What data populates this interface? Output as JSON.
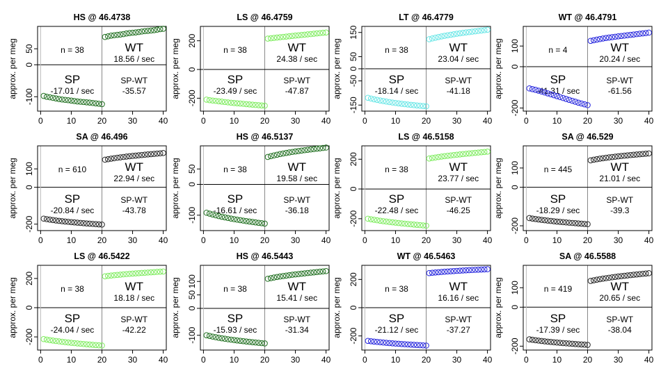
{
  "figure": {
    "ylabel": "approx. per meg",
    "region_labels": {
      "top_right": "WT",
      "bottom_left": "SP",
      "bottom_right": "SP-WT"
    }
  },
  "chart_data": [
    {
      "type": "scatter",
      "title": "HS @ 46.4738",
      "n_label": "n = 38",
      "wt_rate": "18.56 / sec",
      "sp_rate": "-17.01 / sec",
      "diff": "-35.57",
      "color": "#1e6e1e",
      "ylim": [
        -145,
        120
      ],
      "yticks": [
        -100,
        0,
        50
      ],
      "xlim": [
        -1,
        41
      ],
      "xticks": [
        0,
        10,
        20,
        30,
        40
      ],
      "x": [
        1,
        2,
        3,
        4,
        5,
        6,
        7,
        8,
        9,
        10,
        11,
        12,
        13,
        14,
        15,
        16,
        17,
        18,
        19,
        20,
        21,
        22,
        23,
        24,
        25,
        26,
        27,
        28,
        29,
        30,
        31,
        32,
        33,
        34,
        35,
        36,
        37,
        38,
        39,
        40
      ],
      "sp_y": [
        -97.3,
        -100,
        -101.6,
        -103.5,
        -105.3,
        -107.2,
        -108.6,
        -109.7,
        -110.8,
        -112,
        -113.4,
        -114.7,
        -115.7,
        -116.5,
        -117.4,
        -118.3,
        -119.5,
        -120.7,
        -121.9,
        -123.2
      ],
      "wt_y": [
        87,
        89,
        91,
        92.3,
        93.5,
        94.6,
        96,
        97.8,
        99.2,
        100.2,
        101.2,
        102.5,
        104,
        105.3,
        106.1,
        107,
        108.2,
        109.8,
        111.4,
        112.6
      ]
    },
    {
      "type": "scatter",
      "title": "LS @ 46.4759",
      "n_label": "n = 38",
      "wt_rate": "24.38 / sec",
      "sp_rate": "-23.49 / sec",
      "diff": "-47.87",
      "color": "#7cec5c",
      "ylim": [
        -290,
        300
      ],
      "yticks": [
        -200,
        0,
        200
      ],
      "xlim": [
        -1,
        41
      ],
      "xticks": [
        0,
        10,
        20,
        30,
        40
      ],
      "x": [
        1,
        2,
        3,
        4,
        5,
        6,
        7,
        8,
        9,
        10,
        11,
        12,
        13,
        14,
        15,
        16,
        17,
        18,
        19,
        20,
        21,
        22,
        23,
        24,
        25,
        26,
        27,
        28,
        29,
        30,
        31,
        32,
        33,
        34,
        35,
        36,
        37,
        38,
        39,
        40
      ],
      "sp_y": [
        -210,
        -213.5,
        -216.3,
        -218.7,
        -221.2,
        -223.8,
        -226.5,
        -229,
        -231.4,
        -233.5,
        -235.4,
        -237.2,
        -239.2,
        -241.2,
        -243.2,
        -245.1,
        -247,
        -248.7,
        -250.4,
        -252
      ],
      "wt_y": [
        215,
        217.6,
        220,
        222.3,
        224.6,
        226.8,
        229,
        231.3,
        233.7,
        236,
        238.2,
        240.4,
        242.5,
        244.6,
        246.7,
        249,
        251.3,
        253.5,
        255.5,
        257.3
      ]
    },
    {
      "type": "scatter",
      "title": "LT @ 46.4779",
      "n_label": "n = 38",
      "wt_rate": "23.04 / sec",
      "sp_rate": "-18.14 / sec",
      "diff": "-41.18",
      "color": "#66e6e6",
      "ylim": [
        -175,
        175
      ],
      "yticks": [
        -150,
        -50,
        0,
        50,
        150
      ],
      "xlim": [
        -1,
        41
      ],
      "xticks": [
        0,
        10,
        20,
        30,
        40
      ],
      "x": [
        1,
        2,
        3,
        4,
        5,
        6,
        7,
        8,
        9,
        10,
        11,
        12,
        13,
        14,
        15,
        16,
        17,
        18,
        19,
        20,
        21,
        22,
        23,
        24,
        25,
        26,
        27,
        28,
        29,
        30,
        31,
        32,
        33,
        34,
        35,
        36,
        37,
        38,
        39,
        40
      ],
      "sp_y": [
        -120,
        -123,
        -126,
        -128.5,
        -131,
        -133.3,
        -135.5,
        -137.6,
        -139.5,
        -141.3,
        -143,
        -144.6,
        -146.1,
        -147.5,
        -148.9,
        -150.2,
        -151.5,
        -152.8,
        -154,
        -155.2
      ],
      "wt_y": [
        122,
        125.2,
        128.2,
        131,
        133.6,
        136,
        138.3,
        140.5,
        142.6,
        144.6,
        146.5,
        148.3,
        150,
        151.6,
        153.2,
        154.8,
        156.4,
        158,
        159.6,
        161.2
      ]
    },
    {
      "type": "scatter",
      "title": "WT @ 46.4791",
      "n_label": "n = 4",
      "wt_rate": "20.24 / sec",
      "sp_rate": "-41.31 / sec",
      "diff": "-61.56",
      "color": "#2222dd",
      "ylim": [
        -215,
        195
      ],
      "yticks": [
        -200,
        0,
        100
      ],
      "xlim": [
        -1,
        41
      ],
      "xticks": [
        0,
        10,
        20,
        30,
        40
      ],
      "x": [
        1,
        2,
        3,
        4,
        5,
        6,
        7,
        8,
        9,
        10,
        11,
        12,
        13,
        14,
        15,
        16,
        17,
        18,
        19,
        20,
        21,
        22,
        23,
        24,
        25,
        26,
        27,
        28,
        29,
        30,
        31,
        32,
        33,
        34,
        35,
        36,
        37,
        38,
        39,
        40
      ],
      "sp_y": [
        -105,
        -108.5,
        -112,
        -116,
        -120,
        -124.5,
        -129,
        -133.5,
        -138,
        -142.5,
        -147,
        -151.5,
        -156,
        -160.5,
        -165,
        -169.5,
        -174,
        -178,
        -182,
        -186
      ],
      "wt_y": [
        125,
        128,
        131,
        133.8,
        136.4,
        138.8,
        141,
        143.1,
        145,
        146.8,
        148.6,
        150.4,
        152.2,
        154,
        155.8,
        157.6,
        159.4,
        161.2,
        163,
        164.8
      ]
    },
    {
      "type": "scatter",
      "title": "SA @ 46.496",
      "n_label": "n = 610",
      "wt_rate": "22.94 / sec",
      "sp_rate": "-20.84 / sec",
      "diff": "-43.78",
      "color": "#222222",
      "ylim": [
        -235,
        225
      ],
      "yticks": [
        -200,
        0,
        100
      ],
      "xlim": [
        -1,
        41
      ],
      "xticks": [
        0,
        10,
        20,
        30,
        40
      ],
      "x": [
        1,
        2,
        3,
        4,
        5,
        6,
        7,
        8,
        9,
        10,
        11,
        12,
        13,
        14,
        15,
        16,
        17,
        18,
        19,
        20,
        21,
        22,
        23,
        24,
        25,
        26,
        27,
        28,
        29,
        30,
        31,
        32,
        33,
        34,
        35,
        36,
        37,
        38,
        39,
        40
      ],
      "sp_y": [
        -170,
        -172.8,
        -175.4,
        -177.8,
        -180,
        -182,
        -183.9,
        -185.7,
        -187.4,
        -189,
        -190.5,
        -192,
        -193.4,
        -194.8,
        -196.1,
        -197.4,
        -198.7,
        -200,
        -201.2,
        -202.4
      ],
      "wt_y": [
        150,
        152.8,
        155.5,
        158,
        160.4,
        162.6,
        164.7,
        166.7,
        168.6,
        170.4,
        172.1,
        173.8,
        175.4,
        177,
        178.5,
        180,
        181.5,
        183,
        184.5,
        186
      ]
    },
    {
      "type": "scatter",
      "title": "HS @ 46.5137",
      "n_label": "n = 38",
      "wt_rate": "19.58 / sec",
      "sp_rate": "-16.61 / sec",
      "diff": "-36.18",
      "color": "#1e6e1e",
      "ylim": [
        -150,
        125
      ],
      "yticks": [
        -100,
        0,
        50
      ],
      "xlim": [
        -1,
        41
      ],
      "xticks": [
        0,
        10,
        20,
        30,
        40
      ],
      "x": [
        1,
        2,
        3,
        4,
        5,
        6,
        7,
        8,
        9,
        10,
        11,
        12,
        13,
        14,
        15,
        16,
        17,
        18,
        19,
        20,
        21,
        22,
        23,
        24,
        25,
        26,
        27,
        28,
        29,
        30,
        31,
        32,
        33,
        34,
        35,
        36,
        37,
        38,
        39,
        40
      ],
      "sp_y": [
        -92,
        -95,
        -97.8,
        -100.4,
        -102.8,
        -105,
        -107.1,
        -109.1,
        -111,
        -112.8,
        -114.5,
        -116.1,
        -117.6,
        -119.1,
        -120.5,
        -121.9,
        -123.3,
        -124.7,
        -126,
        -127.3
      ],
      "wt_y": [
        89,
        91.6,
        94,
        96.2,
        98.3,
        100.2,
        102,
        103.7,
        105.3,
        106.8,
        108.2,
        109.6,
        110.9,
        112.2,
        113.4,
        114.6,
        115.8,
        117,
        118.2,
        119.4
      ]
    },
    {
      "type": "scatter",
      "title": "LS @ 46.5158",
      "n_label": "n = 38",
      "wt_rate": "23.77 / sec",
      "sp_rate": "-22.48 / sec",
      "diff": "-46.25",
      "color": "#7cec5c",
      "ylim": [
        -280,
        290
      ],
      "yticks": [
        -200,
        0,
        200
      ],
      "xlim": [
        -1,
        41
      ],
      "xticks": [
        0,
        10,
        20,
        30,
        40
      ],
      "x": [
        1,
        2,
        3,
        4,
        5,
        6,
        7,
        8,
        9,
        10,
        11,
        12,
        13,
        14,
        15,
        16,
        17,
        18,
        19,
        20,
        21,
        22,
        23,
        24,
        25,
        26,
        27,
        28,
        29,
        30,
        31,
        32,
        33,
        34,
        35,
        36,
        37,
        38,
        39,
        40
      ],
      "sp_y": [
        -200,
        -203.7,
        -207.2,
        -210.5,
        -213.6,
        -216.5,
        -219.2,
        -221.8,
        -224.3,
        -226.7,
        -229,
        -231.2,
        -233.3,
        -235.4,
        -237.4,
        -239.4,
        -241.3,
        -243.2,
        -245,
        -246.8
      ],
      "wt_y": [
        205,
        208.5,
        211.8,
        214.9,
        217.8,
        220.6,
        223.2,
        225.7,
        228.1,
        230.4,
        232.6,
        234.8,
        236.9,
        239,
        241,
        243,
        245,
        247,
        249,
        251
      ]
    },
    {
      "type": "scatter",
      "title": "SA @ 46.529",
      "n_label": "n = 445",
      "wt_rate": "21.01 / sec",
      "sp_rate": "-18.29 / sec",
      "diff": "-39.3",
      "color": "#222222",
      "ylim": [
        -225,
        215
      ],
      "yticks": [
        -200,
        0,
        100
      ],
      "xlim": [
        -1,
        41
      ],
      "xticks": [
        0,
        10,
        20,
        30,
        40
      ],
      "x": [
        1,
        2,
        3,
        4,
        5,
        6,
        7,
        8,
        9,
        10,
        11,
        12,
        13,
        14,
        15,
        16,
        17,
        18,
        19,
        20,
        21,
        22,
        23,
        24,
        25,
        26,
        27,
        28,
        29,
        30,
        31,
        32,
        33,
        34,
        35,
        36,
        37,
        38,
        39,
        40
      ],
      "sp_y": [
        -160,
        -162.5,
        -164.9,
        -167.1,
        -169.2,
        -171.2,
        -173.1,
        -174.9,
        -176.6,
        -178.2,
        -179.7,
        -181.2,
        -182.6,
        -184,
        -185.3,
        -186.6,
        -187.9,
        -189.2,
        -190.4,
        -191.6
      ],
      "wt_y": [
        140,
        143,
        145.8,
        148.4,
        150.8,
        153,
        155.1,
        157.1,
        159,
        160.8,
        162.5,
        164.1,
        165.7,
        167.2,
        168.7,
        170.1,
        171.5,
        172.9,
        174.3,
        175.7
      ]
    },
    {
      "type": "scatter",
      "title": "LS @ 46.5422",
      "n_label": "n = 38",
      "wt_rate": "18.18 / sec",
      "sp_rate": "-24.04 / sec",
      "diff": "-42.22",
      "color": "#7cec5c",
      "ylim": [
        -290,
        290
      ],
      "yticks": [
        -200,
        0,
        200
      ],
      "xlim": [
        -1,
        41
      ],
      "xticks": [
        0,
        10,
        20,
        30,
        40
      ],
      "x": [
        1,
        2,
        3,
        4,
        5,
        6,
        7,
        8,
        9,
        10,
        11,
        12,
        13,
        14,
        15,
        16,
        17,
        18,
        19,
        20,
        21,
        22,
        23,
        24,
        25,
        26,
        27,
        28,
        29,
        30,
        31,
        32,
        33,
        34,
        35,
        36,
        37,
        38,
        39,
        40
      ],
      "sp_y": [
        -215,
        -218.5,
        -221.8,
        -224.9,
        -227.8,
        -230.5,
        -233.1,
        -235.6,
        -238,
        -240.3,
        -242.5,
        -244.6,
        -246.6,
        -248.5,
        -250.4,
        -252.2,
        -254,
        -255.7,
        -257.4,
        -259
      ],
      "wt_y": [
        215,
        217.6,
        220,
        222.2,
        224.3,
        226.3,
        228.2,
        230,
        231.7,
        233.3,
        234.9,
        236.4,
        237.9,
        239.3,
        240.7,
        242.1,
        243.5,
        244.9,
        246.3,
        247.7
      ]
    },
    {
      "type": "scatter",
      "title": "HS @ 46.5443",
      "n_label": "n = 38",
      "wt_rate": "15.41 / sec",
      "sp_rate": "-15.93 / sec",
      "diff": "-31.34",
      "color": "#1e6e1e",
      "ylim": [
        -155,
        160
      ],
      "yticks": [
        -100,
        0,
        50,
        100
      ],
      "xlim": [
        -1,
        41
      ],
      "xticks": [
        0,
        10,
        20,
        30,
        40
      ],
      "x": [
        1,
        2,
        3,
        4,
        5,
        6,
        7,
        8,
        9,
        10,
        11,
        12,
        13,
        14,
        15,
        16,
        17,
        18,
        19,
        20,
        21,
        22,
        23,
        24,
        25,
        26,
        27,
        28,
        29,
        30,
        31,
        32,
        33,
        34,
        35,
        36,
        37,
        38,
        39,
        40
      ],
      "sp_y": [
        -100,
        -102.6,
        -105,
        -107.2,
        -109.3,
        -111.2,
        -113,
        -114.7,
        -116.3,
        -117.8,
        -119.3,
        -120.7,
        -122,
        -123.3,
        -124.5,
        -125.7,
        -126.9,
        -128.1,
        -129.2,
        -130.3
      ],
      "wt_y": [
        110,
        112.4,
        114.6,
        116.6,
        118.5,
        120.2,
        121.8,
        123.4,
        124.9,
        126.3,
        127.6,
        128.9,
        130.2,
        131.4,
        132.6,
        133.8,
        135,
        136.2,
        137.4,
        138.6
      ]
    },
    {
      "type": "scatter",
      "title": "WT @ 46.5463",
      "n_label": "n = 38",
      "wt_rate": "16.16 / sec",
      "sp_rate": "-21.12 / sec",
      "diff": "-37.27",
      "color": "#2222dd",
      "ylim": [
        -300,
        300
      ],
      "yticks": [
        -200,
        0,
        200
      ],
      "xlim": [
        -1,
        41
      ],
      "xticks": [
        0,
        10,
        20,
        30,
        40
      ],
      "x": [
        1,
        2,
        3,
        4,
        5,
        6,
        7,
        8,
        9,
        10,
        11,
        12,
        13,
        14,
        15,
        16,
        17,
        18,
        19,
        20,
        21,
        22,
        23,
        24,
        25,
        26,
        27,
        28,
        29,
        30,
        31,
        32,
        33,
        34,
        35,
        36,
        37,
        38,
        39,
        40
      ],
      "sp_y": [
        -235,
        -237.6,
        -240,
        -242.3,
        -244.5,
        -246.6,
        -248.6,
        -250.5,
        -252.3,
        -254,
        -255.6,
        -257.2,
        -258.7,
        -260.1,
        -261.5,
        -262.9,
        -264.2,
        -265.5,
        -266.8,
        -268
      ],
      "wt_y": [
        245,
        247.3,
        249.4,
        251.3,
        253.1,
        254.8,
        256.4,
        257.9,
        259.3,
        260.7,
        262,
        263.3,
        264.5,
        265.7,
        266.9,
        268,
        269.1,
        270.2,
        271.3,
        272.4
      ]
    },
    {
      "type": "scatter",
      "title": "SA @ 46.5588",
      "n_label": "n = 419",
      "wt_rate": "20.65 / sec",
      "sp_rate": "-17.39 / sec",
      "diff": "-38.04",
      "color": "#222222",
      "ylim": [
        -220,
        215
      ],
      "yticks": [
        -200,
        0,
        100
      ],
      "xlim": [
        -1,
        41
      ],
      "xticks": [
        0,
        10,
        20,
        30,
        40
      ],
      "x": [
        1,
        2,
        3,
        4,
        5,
        6,
        7,
        8,
        9,
        10,
        11,
        12,
        13,
        14,
        15,
        16,
        17,
        18,
        19,
        20,
        21,
        22,
        23,
        24,
        25,
        26,
        27,
        28,
        29,
        30,
        31,
        32,
        33,
        34,
        35,
        36,
        37,
        38,
        39,
        40
      ],
      "sp_y": [
        -165,
        -167.3,
        -169.4,
        -171.4,
        -173.3,
        -175.1,
        -176.8,
        -178.4,
        -179.9,
        -181.3,
        -182.7,
        -184,
        -185.3,
        -186.5,
        -187.7,
        -188.9,
        -190.1,
        -191.2,
        -192.3,
        -193.4
      ],
      "wt_y": [
        135,
        138.2,
        141.2,
        144,
        146.6,
        149,
        151.3,
        153.5,
        155.6,
        157.6,
        159.5,
        161.3,
        163.1,
        164.8,
        166.5,
        168.1,
        169.7,
        171.3,
        172.9,
        174.5
      ]
    }
  ]
}
